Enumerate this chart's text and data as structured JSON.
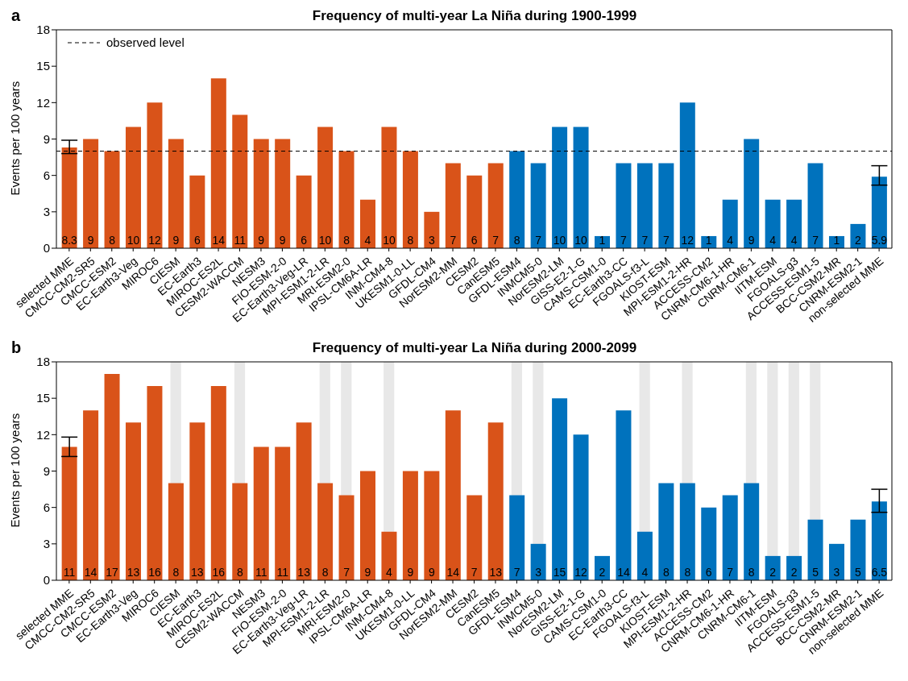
{
  "chart_data": [
    {
      "type": "bar",
      "title": "Frequency of multi-year La Niña during 1900-1999",
      "ylabel": "Events per 100 years",
      "annotations": [
        "a"
      ],
      "categories": [
        "selected MME",
        "CMCC-CM2-SR5",
        "CMCC-ESM2",
        "EC-Earth3-Veg",
        "MIROC6",
        "CIESM",
        "EC-Earth3",
        "MIROC-ES2L",
        "CESM2-WACCM",
        "NESM3",
        "FIO-ESM-2-0",
        "EC-Earth3-Veg-LR",
        "MPI-ESM1-2-LR",
        "MRI-ESM2-0",
        "IPSL-CM6A-LR",
        "INM-CM4-8",
        "UKESM1-0-LL",
        "GFDL-CM4",
        "NorESM2-MM",
        "CESM2",
        "CanESM5",
        "GFDL-ESM4",
        "INMCM5-0",
        "NorESM2-LM",
        "GISS-E2-1-G",
        "CAMS-CSM1-0",
        "EC-Earth3-CC",
        "FGOALS-f3-L",
        "KIOST-ESM",
        "MPI-ESM1-2-HR",
        "ACCESS-CM2",
        "CNRM-CM6-1-HR",
        "CNRM-CM6-1",
        "IITM-ESM",
        "FGOALS-g3",
        "ACCESS-ESM1-5",
        "BCC-CSM2-MR",
        "CNRM-ESM2-1",
        "non-selected MME"
      ],
      "values": [
        8.3,
        9,
        8,
        10,
        12,
        9,
        6,
        14,
        11,
        9,
        9,
        6,
        10,
        8,
        4,
        10,
        8,
        3,
        7,
        6,
        7,
        8,
        7,
        10,
        10,
        1,
        7,
        7,
        7,
        12,
        1,
        4,
        9,
        4,
        4,
        7,
        1,
        2,
        5.9
      ],
      "errors": [
        [
          7.8,
          8.9
        ],
        null,
        null,
        null,
        null,
        null,
        null,
        null,
        null,
        null,
        null,
        null,
        null,
        null,
        null,
        null,
        null,
        null,
        null,
        null,
        null,
        null,
        null,
        null,
        null,
        null,
        null,
        null,
        null,
        null,
        null,
        null,
        null,
        null,
        null,
        null,
        null,
        null,
        [
          5.2,
          6.8
        ]
      ],
      "colors": [
        "#d95319",
        "#d95319",
        "#d95319",
        "#d95319",
        "#d95319",
        "#d95319",
        "#d95319",
        "#d95319",
        "#d95319",
        "#d95319",
        "#d95319",
        "#d95319",
        "#d95319",
        "#d95319",
        "#d95319",
        "#d95319",
        "#d95319",
        "#d95319",
        "#d95319",
        "#d95319",
        "#d95319",
        "#0072bd",
        "#0072bd",
        "#0072bd",
        "#0072bd",
        "#0072bd",
        "#0072bd",
        "#0072bd",
        "#0072bd",
        "#0072bd",
        "#0072bd",
        "#0072bd",
        "#0072bd",
        "#0072bd",
        "#0072bd",
        "#0072bd",
        "#0072bd",
        "#0072bd",
        "#0072bd"
      ],
      "ylim": [
        0,
        18
      ],
      "yticks": [
        0,
        3,
        6,
        9,
        12,
        15,
        18
      ],
      "data_labels": true,
      "legend": "top left",
      "ref_lines": [
        {
          "axis": "y",
          "value": 8,
          "label": "observed level",
          "color": "#000000",
          "line_style": "dashed"
        }
      ]
    },
    {
      "type": "bar",
      "title": "Frequency of multi-year La Niña during 2000-2099",
      "ylabel": "Events per 100 years",
      "annotations": [
        "b"
      ],
      "categories": [
        "selected MME",
        "CMCC-CM2-SR5",
        "CMCC-ESM2",
        "EC-Earth3-Veg",
        "MIROC6",
        "CIESM",
        "EC-Earth3",
        "MIROC-ES2L",
        "CESM2-WACCM",
        "NESM3",
        "FIO-ESM-2-0",
        "EC-Earth3-Veg-LR",
        "MPI-ESM1-2-LR",
        "MRI-ESM2-0",
        "IPSL-CM6A-LR",
        "INM-CM4-8",
        "UKESM1-0-LL",
        "GFDL-CM4",
        "NorESM2-MM",
        "CESM2",
        "CanESM5",
        "GFDL-ESM4",
        "INMCM5-0",
        "NorESM2-LM",
        "GISS-E2-1-G",
        "CAMS-CSM1-0",
        "EC-Earth3-CC",
        "FGOALS-f3-L",
        "KIOST-ESM",
        "MPI-ESM1-2-HR",
        "ACCESS-CM2",
        "CNRM-CM6-1-HR",
        "CNRM-CM6-1",
        "IITM-ESM",
        "FGOALS-g3",
        "ACCESS-ESM1-5",
        "BCC-CSM2-MR",
        "CNRM-ESM2-1",
        "non-selected MME"
      ],
      "values": [
        11,
        14,
        17,
        13,
        16,
        8,
        13,
        16,
        8,
        11,
        11,
        13,
        8,
        7,
        9,
        4,
        9,
        9,
        14,
        7,
        13,
        7,
        3,
        15,
        12,
        2,
        14,
        4,
        8,
        8,
        6,
        7,
        8,
        2,
        2,
        5,
        3,
        5,
        6.5
      ],
      "errors": [
        [
          10.2,
          11.8
        ],
        null,
        null,
        null,
        null,
        null,
        null,
        null,
        null,
        null,
        null,
        null,
        null,
        null,
        null,
        null,
        null,
        null,
        null,
        null,
        null,
        null,
        null,
        null,
        null,
        null,
        null,
        null,
        null,
        null,
        null,
        null,
        null,
        null,
        null,
        null,
        null,
        null,
        [
          5.6,
          7.5
        ]
      ],
      "colors": [
        "#d95319",
        "#d95319",
        "#d95319",
        "#d95319",
        "#d95319",
        "#d95319",
        "#d95319",
        "#d95319",
        "#d95319",
        "#d95319",
        "#d95319",
        "#d95319",
        "#d95319",
        "#d95319",
        "#d95319",
        "#d95319",
        "#d95319",
        "#d95319",
        "#d95319",
        "#d95319",
        "#d95319",
        "#0072bd",
        "#0072bd",
        "#0072bd",
        "#0072bd",
        "#0072bd",
        "#0072bd",
        "#0072bd",
        "#0072bd",
        "#0072bd",
        "#0072bd",
        "#0072bd",
        "#0072bd",
        "#0072bd",
        "#0072bd",
        "#0072bd",
        "#0072bd",
        "#0072bd",
        "#0072bd"
      ],
      "ylim": [
        0,
        18
      ],
      "yticks": [
        0,
        3,
        6,
        9,
        12,
        15,
        18
      ],
      "data_labels": true,
      "bands": [
        {
          "axis": "x",
          "from": "CIESM",
          "to": "CIESM",
          "color": "#d9d9d9"
        },
        {
          "axis": "x",
          "from": "CESM2-WACCM",
          "to": "CESM2-WACCM",
          "color": "#d9d9d9"
        },
        {
          "axis": "x",
          "from": "MPI-ESM1-2-LR",
          "to": "MPI-ESM1-2-LR",
          "color": "#d9d9d9"
        },
        {
          "axis": "x",
          "from": "MRI-ESM2-0",
          "to": "MRI-ESM2-0",
          "color": "#d9d9d9"
        },
        {
          "axis": "x",
          "from": "INM-CM4-8",
          "to": "INM-CM4-8",
          "color": "#d9d9d9"
        },
        {
          "axis": "x",
          "from": "GFDL-ESM4",
          "to": "GFDL-ESM4",
          "color": "#d9d9d9"
        },
        {
          "axis": "x",
          "from": "INMCM5-0",
          "to": "INMCM5-0",
          "color": "#d9d9d9"
        },
        {
          "axis": "x",
          "from": "FGOALS-f3-L",
          "to": "FGOALS-f3-L",
          "color": "#d9d9d9"
        },
        {
          "axis": "x",
          "from": "MPI-ESM1-2-HR",
          "to": "MPI-ESM1-2-HR",
          "color": "#d9d9d9"
        },
        {
          "axis": "x",
          "from": "CNRM-CM6-1",
          "to": "CNRM-CM6-1",
          "color": "#d9d9d9"
        },
        {
          "axis": "x",
          "from": "IITM-ESM",
          "to": "IITM-ESM",
          "color": "#d9d9d9"
        },
        {
          "axis": "x",
          "from": "FGOALS-g3",
          "to": "FGOALS-g3",
          "color": "#d9d9d9"
        },
        {
          "axis": "x",
          "from": "ACCESS-ESM1-5",
          "to": "ACCESS-ESM1-5",
          "color": "#d9d9d9"
        }
      ]
    }
  ]
}
